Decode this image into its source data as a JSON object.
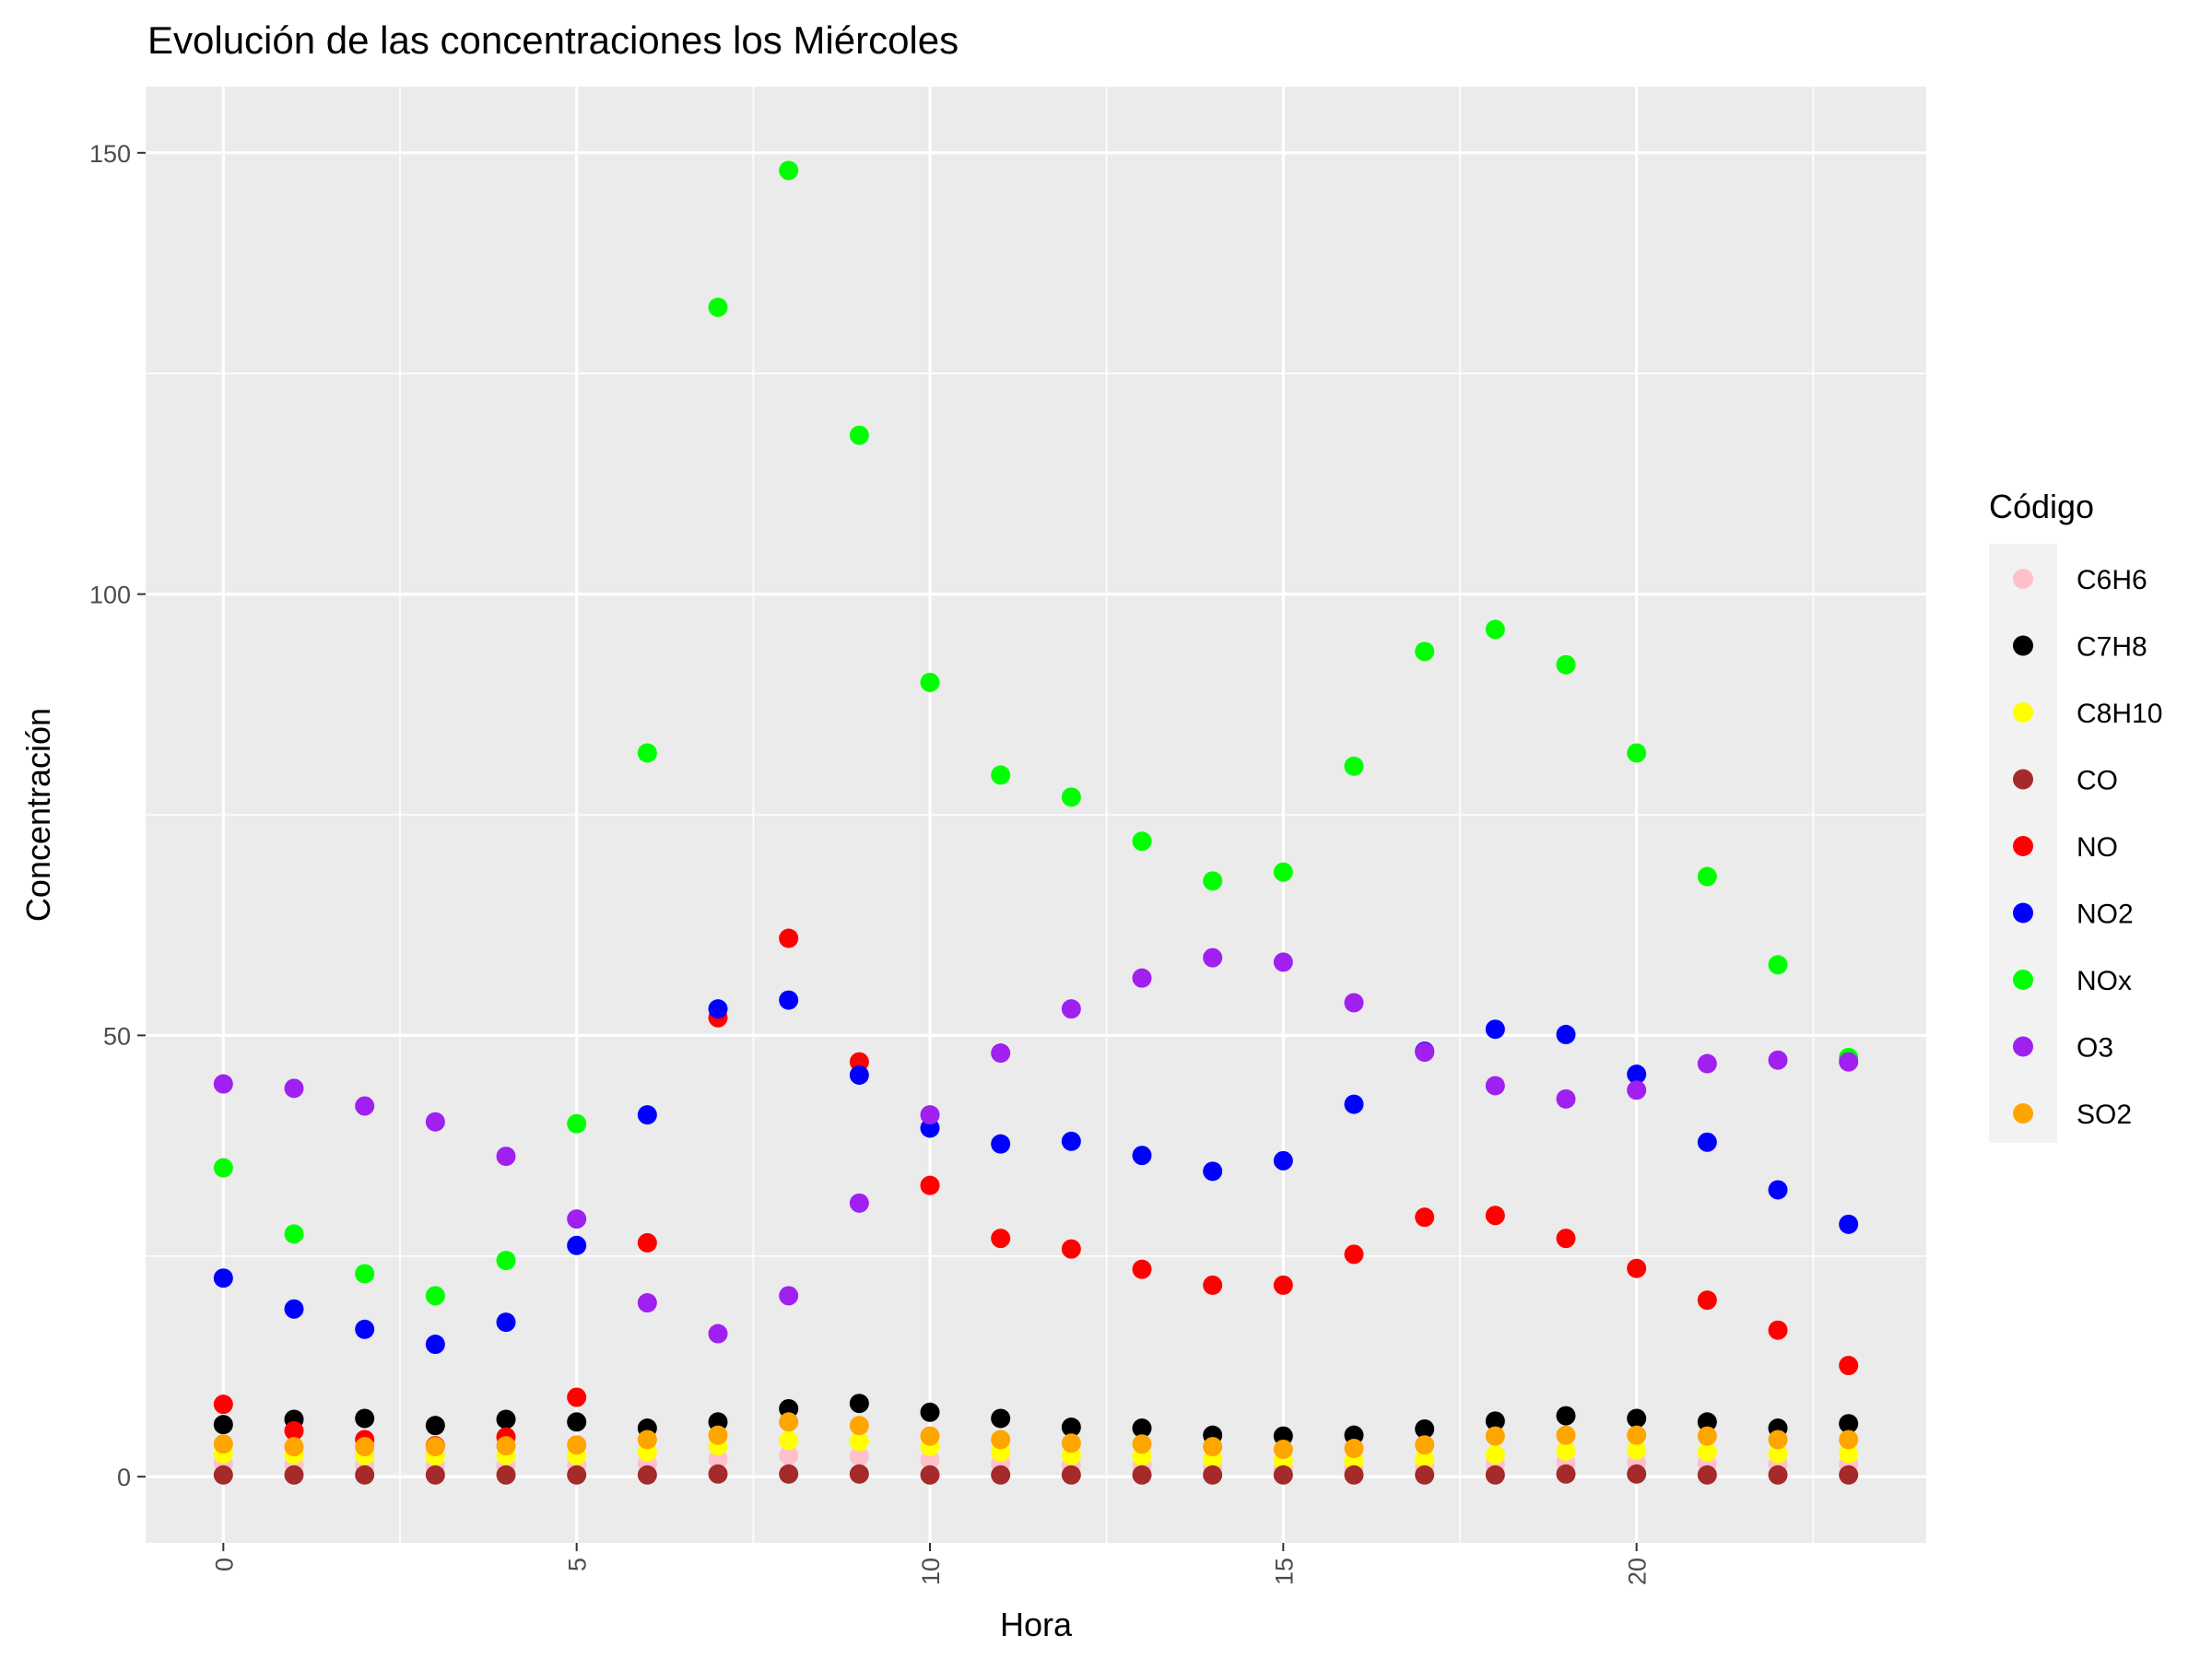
{
  "chart_data": {
    "type": "scatter",
    "title": "Evolución de las concentraciones los Miércoles",
    "xlabel": "Hora",
    "ylabel": "Concentración",
    "xlim": [
      -1.1,
      24.1
    ],
    "ylim": [
      -7.5,
      157.5
    ],
    "xticks": [
      0,
      5,
      10,
      15,
      20
    ],
    "yticks": [
      0,
      50,
      100,
      150
    ],
    "grid": true,
    "legend_title": "Código",
    "legend_position": "right",
    "x": [
      0,
      1,
      2,
      3,
      4,
      5,
      6,
      7,
      8,
      9,
      10,
      11,
      12,
      13,
      14,
      15,
      16,
      17,
      18,
      19,
      20,
      21,
      22,
      23
    ],
    "series": [
      {
        "name": "C6H6",
        "color": "#FFC0CB",
        "values": [
          1.5,
          1.4,
          1.3,
          1.2,
          1.3,
          1.3,
          1.5,
          2.0,
          2.4,
          2.3,
          1.9,
          1.5,
          1.3,
          1.2,
          1.1,
          1.0,
          1.0,
          1.1,
          1.4,
          1.6,
          1.6,
          1.5,
          1.4,
          1.4
        ]
      },
      {
        "name": "C7H8",
        "color": "#000000",
        "values": [
          5.9,
          6.5,
          6.6,
          5.8,
          6.5,
          6.2,
          5.5,
          6.2,
          7.7,
          8.3,
          7.3,
          6.6,
          5.6,
          5.5,
          4.7,
          4.6,
          4.7,
          5.4,
          6.3,
          6.9,
          6.6,
          6.2,
          5.5,
          6.0
        ]
      },
      {
        "name": "C8H10",
        "color": "#FFFF00",
        "values": [
          2.6,
          2.5,
          2.4,
          2.3,
          2.4,
          2.4,
          2.8,
          3.5,
          4.1,
          4.0,
          3.4,
          2.8,
          2.4,
          2.3,
          2.0,
          1.8,
          1.8,
          2.0,
          2.5,
          2.9,
          3.0,
          2.8,
          2.6,
          2.6
        ]
      },
      {
        "name": "CO",
        "color": "#A52A2A",
        "values": [
          0.2,
          0.2,
          0.2,
          0.2,
          0.2,
          0.2,
          0.2,
          0.3,
          0.3,
          0.3,
          0.2,
          0.2,
          0.2,
          0.2,
          0.2,
          0.2,
          0.2,
          0.2,
          0.2,
          0.3,
          0.3,
          0.2,
          0.2,
          0.2
        ]
      },
      {
        "name": "NO",
        "color": "#FF0000",
        "values": [
          8.2,
          5.2,
          4.2,
          3.5,
          4.5,
          9.0,
          26.5,
          52.0,
          61.0,
          47.0,
          33.0,
          27.0,
          25.8,
          23.5,
          21.7,
          21.7,
          25.2,
          29.4,
          29.6,
          27.0,
          23.6,
          20.0,
          16.6,
          12.6
        ]
      },
      {
        "name": "NO2",
        "color": "#0000FF",
        "values": [
          22.5,
          19.0,
          16.7,
          15.0,
          17.5,
          26.2,
          41.0,
          53.0,
          54.0,
          45.5,
          39.5,
          37.7,
          38.0,
          36.4,
          34.6,
          35.8,
          42.2,
          48.2,
          50.7,
          50.1,
          45.6,
          37.9,
          32.5,
          28.6
        ]
      },
      {
        "name": "NOx",
        "color": "#00FF00",
        "values": [
          35.0,
          27.5,
          23.0,
          20.5,
          24.5,
          40.0,
          82.0,
          132.5,
          148.0,
          118.0,
          90.0,
          79.5,
          77.0,
          72.0,
          67.5,
          68.5,
          80.5,
          93.5,
          96.0,
          92.0,
          82.0,
          68.0,
          58.0,
          47.5
        ]
      },
      {
        "name": "O3",
        "color": "#A020F0",
        "values": [
          44.5,
          44.0,
          42.0,
          40.2,
          36.3,
          29.2,
          19.7,
          16.2,
          20.5,
          31.0,
          41.0,
          48.0,
          53.0,
          56.5,
          58.8,
          58.3,
          53.7,
          48.1,
          44.3,
          42.8,
          43.8,
          46.8,
          47.2,
          47.0
        ]
      },
      {
        "name": "SO2",
        "color": "#FFA500",
        "values": [
          3.7,
          3.4,
          3.4,
          3.4,
          3.5,
          3.6,
          4.2,
          4.7,
          6.2,
          5.8,
          4.6,
          4.2,
          3.8,
          3.7,
          3.4,
          3.1,
          3.2,
          3.6,
          4.6,
          4.7,
          4.7,
          4.6,
          4.2,
          4.2
        ]
      }
    ]
  }
}
